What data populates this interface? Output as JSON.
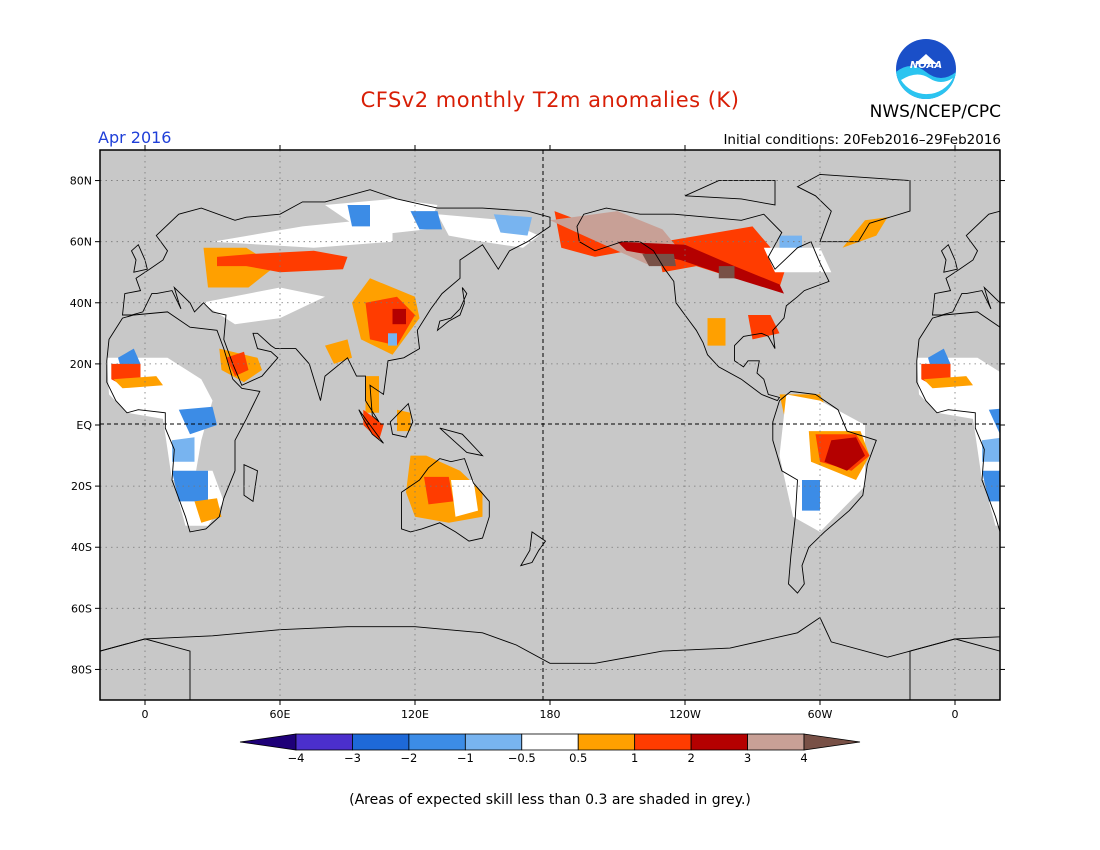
{
  "header": {
    "title": "CFSv2 monthly T2m anomalies (K)",
    "period": "Apr 2016",
    "agency": "NWS/NCEP/CPC",
    "initial_conditions": "Initial conditions: 20Feb2016–29Feb2016",
    "logo_text": "NOAA"
  },
  "map": {
    "lat_labels": [
      "80N",
      "60N",
      "40N",
      "20N",
      "EQ",
      "20S",
      "40S",
      "60S",
      "80S"
    ],
    "lat_values": [
      80,
      60,
      40,
      20,
      0,
      -20,
      -40,
      -60,
      -80
    ],
    "lon_labels": [
      "0",
      "60E",
      "120E",
      "180",
      "120W",
      "60W",
      "0"
    ],
    "lon_values": [
      0,
      60,
      120,
      180,
      240,
      300,
      360
    ],
    "lon_range": [
      -20,
      380
    ],
    "lat_range": [
      -90,
      90
    ],
    "no_skill_color": "#c8c8c8"
  },
  "colorbar": {
    "labels": [
      "−4",
      "−3",
      "−2",
      "−1",
      "−0.5",
      "0.5",
      "1",
      "2",
      "3",
      "4"
    ],
    "colors": [
      "#1e0078",
      "#4b2fcc",
      "#1e69d8",
      "#3c8ce6",
      "#78b4f0",
      "#ffffff",
      "#ffa000",
      "#ff3c00",
      "#b40000",
      "#c8a096",
      "#785046"
    ]
  },
  "footnote": "(Areas of expected skill less than 0.3 are shaded in grey.)"
}
